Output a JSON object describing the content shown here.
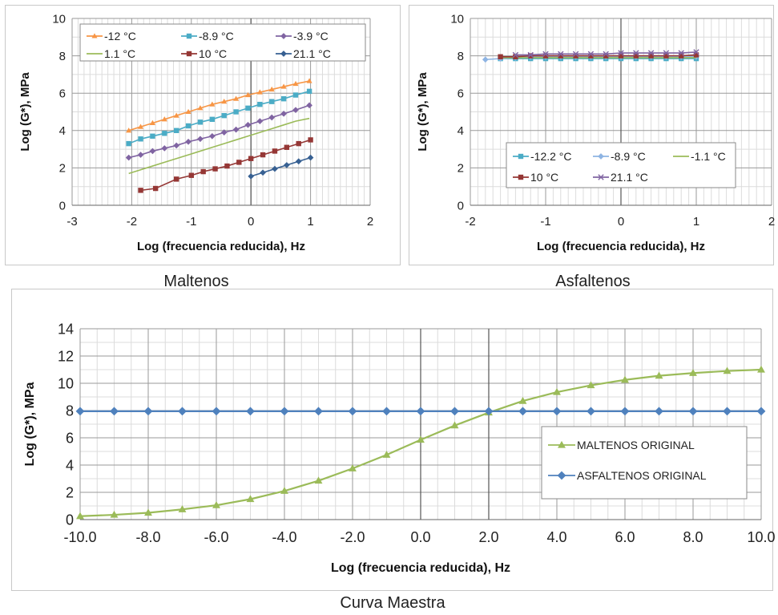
{
  "captions": {
    "maltenos": "Maltenos",
    "asfaltenos": "Asfaltenos",
    "maestra": "Curva Maestra"
  },
  "chart_data": [
    {
      "id": "maltenos",
      "type": "line",
      "xlabel": "Log (frecuencia reducida), Hz",
      "ylabel": "Log (G*), MPa",
      "xlim": [
        -3,
        2
      ],
      "ylim": [
        0,
        10
      ],
      "xticks": [
        "-3",
        "-2",
        "-1",
        "0",
        "1",
        "2"
      ],
      "yticks": [
        "0",
        "2",
        "4",
        "6",
        "8",
        "10"
      ],
      "grid": true,
      "legend": "top",
      "series": [
        {
          "name": "-12 °C",
          "color": "#f79646",
          "marker": "triangle",
          "x": [
            -2.05,
            -1.85,
            -1.65,
            -1.45,
            -1.25,
            -1.05,
            -0.85,
            -0.65,
            -0.45,
            -0.25,
            -0.05,
            0.15,
            0.35,
            0.55,
            0.75,
            0.98
          ],
          "y": [
            4.0,
            4.2,
            4.4,
            4.6,
            4.8,
            5.0,
            5.2,
            5.4,
            5.55,
            5.7,
            5.9,
            6.05,
            6.2,
            6.35,
            6.5,
            6.65
          ]
        },
        {
          "name": "-8.9 °C",
          "color": "#4bacc6",
          "marker": "square",
          "x": [
            -2.05,
            -1.85,
            -1.65,
            -1.45,
            -1.25,
            -1.05,
            -0.85,
            -0.65,
            -0.45,
            -0.25,
            -0.05,
            0.15,
            0.35,
            0.55,
            0.75,
            0.98
          ],
          "y": [
            3.3,
            3.55,
            3.7,
            3.85,
            4.0,
            4.25,
            4.45,
            4.6,
            4.8,
            5.0,
            5.2,
            5.4,
            5.55,
            5.7,
            5.9,
            6.1
          ]
        },
        {
          "name": "-3.9 °C",
          "color": "#8064a2",
          "marker": "diamond",
          "x": [
            -2.05,
            -1.85,
            -1.65,
            -1.45,
            -1.25,
            -1.05,
            -0.85,
            -0.65,
            -0.45,
            -0.25,
            -0.05,
            0.15,
            0.35,
            0.55,
            0.75,
            0.98
          ],
          "y": [
            2.55,
            2.7,
            2.9,
            3.05,
            3.2,
            3.4,
            3.55,
            3.7,
            3.9,
            4.05,
            4.3,
            4.5,
            4.7,
            4.9,
            5.1,
            5.35
          ]
        },
        {
          "name": "1.1 °C",
          "color": "#9bbb59",
          "marker": "line",
          "x": [
            -2.05,
            -1.85,
            -1.65,
            -1.45,
            -1.25,
            -1.05,
            -0.85,
            -0.65,
            -0.45,
            -0.25,
            -0.05,
            0.15,
            0.35,
            0.55,
            0.75,
            0.98
          ],
          "y": [
            1.7,
            1.9,
            2.1,
            2.3,
            2.5,
            2.7,
            2.9,
            3.1,
            3.3,
            3.5,
            3.7,
            3.9,
            4.1,
            4.3,
            4.5,
            4.65
          ]
        },
        {
          "name": "10 °C",
          "color": "#953735",
          "marker": "square",
          "x": [
            -1.85,
            -1.6,
            -1.25,
            -1.0,
            -0.8,
            -0.6,
            -0.4,
            -0.2,
            0.0,
            0.2,
            0.4,
            0.6,
            0.8,
            1.0
          ],
          "y": [
            0.8,
            0.9,
            1.4,
            1.6,
            1.8,
            1.95,
            2.1,
            2.3,
            2.5,
            2.7,
            2.9,
            3.1,
            3.3,
            3.5
          ]
        },
        {
          "name": "21.1 °C",
          "color": "#376092",
          "marker": "diamond",
          "x": [
            0.0,
            0.2,
            0.4,
            0.6,
            0.8,
            1.0
          ],
          "y": [
            1.55,
            1.75,
            1.95,
            2.15,
            2.35,
            2.55
          ]
        }
      ]
    },
    {
      "id": "asfaltenos",
      "type": "line",
      "xlabel": "Log (frecuencia reducida), Hz",
      "ylabel": "Log (G*), MPa",
      "xlim": [
        -2,
        2
      ],
      "ylim": [
        0,
        10
      ],
      "xticks": [
        "-2",
        "-1",
        "0",
        "1",
        "2"
      ],
      "yticks": [
        "0",
        "2",
        "4",
        "6",
        "8",
        "10"
      ],
      "grid": true,
      "legend": "bottom-center",
      "series": [
        {
          "name": "-12.2 °C",
          "color": "#4bacc6",
          "marker": "square",
          "x": [
            -1.6,
            -1.4,
            -1.2,
            -1.0,
            -0.8,
            -0.6,
            -0.4,
            -0.2,
            0.0,
            0.2,
            0.4,
            0.6,
            0.8,
            1.0
          ],
          "y": [
            7.85,
            7.85,
            7.85,
            7.85,
            7.85,
            7.85,
            7.85,
            7.85,
            7.85,
            7.85,
            7.85,
            7.85,
            7.85,
            7.85
          ]
        },
        {
          "name": "-8.9 °C",
          "color": "#8eb4e3",
          "marker": "diamond",
          "x": [
            -1.8,
            -1.6,
            -1.4,
            -1.2,
            -1.0,
            -0.8,
            -0.6,
            -0.4,
            -0.2,
            0.0,
            0.2,
            0.4,
            0.6,
            0.8,
            1.0
          ],
          "y": [
            7.8,
            7.85,
            7.9,
            7.95,
            7.95,
            7.95,
            7.95,
            7.95,
            7.95,
            7.95,
            7.95,
            7.95,
            7.95,
            7.95,
            7.95
          ]
        },
        {
          "name": "-1.1 °C",
          "color": "#9bbb59",
          "marker": "line",
          "x": [
            -1.6,
            -1.4,
            -1.2,
            -1.0,
            -0.8,
            -0.6,
            -0.4,
            -0.2,
            0.0,
            0.2,
            0.4,
            0.6,
            0.8,
            1.0
          ],
          "y": [
            7.9,
            7.9,
            7.9,
            7.9,
            7.9,
            7.9,
            7.9,
            7.9,
            7.9,
            7.9,
            7.9,
            7.9,
            7.9,
            7.9
          ]
        },
        {
          "name": "10 °C",
          "color": "#953735",
          "marker": "square",
          "x": [
            -1.6,
            -1.4,
            -1.2,
            -1.0,
            -0.8,
            -0.6,
            -0.4,
            -0.2,
            0.0,
            0.2,
            0.4,
            0.6,
            0.8,
            1.0
          ],
          "y": [
            7.95,
            7.95,
            8.0,
            8.0,
            8.0,
            8.0,
            8.0,
            8.0,
            8.0,
            8.0,
            8.0,
            8.0,
            8.0,
            8.05
          ]
        },
        {
          "name": "21.1 °C",
          "color": "#8064a2",
          "marker": "x",
          "x": [
            -1.4,
            -1.2,
            -1.0,
            -0.8,
            -0.6,
            -0.4,
            -0.2,
            0.0,
            0.2,
            0.4,
            0.6,
            0.8,
            1.0
          ],
          "y": [
            8.05,
            8.05,
            8.1,
            8.1,
            8.1,
            8.1,
            8.1,
            8.15,
            8.15,
            8.15,
            8.15,
            8.15,
            8.2
          ]
        }
      ]
    },
    {
      "id": "maestra",
      "type": "line",
      "xlabel": "Log (frecuencia reducida), Hz",
      "ylabel": "Log (G*), MPa",
      "xlim": [
        -10,
        10
      ],
      "ylim": [
        0,
        14
      ],
      "xticks": [
        "-10.0",
        "-8.0",
        "-6.0",
        "-4.0",
        "-2.0",
        "0.0",
        "2.0",
        "4.0",
        "6.0",
        "8.0",
        "10.0"
      ],
      "yticks": [
        "0",
        "2",
        "4",
        "6",
        "8",
        "10",
        "12",
        "14"
      ],
      "grid": true,
      "legend": "right",
      "series": [
        {
          "name": "MALTENOS ORIGINAL",
          "color": "#9bbb59",
          "marker": "triangle",
          "x": [
            -10,
            -9,
            -8,
            -7,
            -6,
            -5,
            -4,
            -3,
            -2,
            -1,
            0,
            1,
            2,
            3,
            4,
            5,
            6,
            7,
            8,
            9,
            10
          ],
          "y": [
            0.25,
            0.35,
            0.5,
            0.75,
            1.05,
            1.5,
            2.1,
            2.85,
            3.75,
            4.75,
            5.85,
            6.9,
            7.85,
            8.7,
            9.35,
            9.85,
            10.25,
            10.55,
            10.75,
            10.9,
            11.0
          ]
        },
        {
          "name": "ASFALTENOS ORIGINAL",
          "color": "#4f81bd",
          "marker": "diamond",
          "x": [
            -10,
            -9,
            -8,
            -7,
            -6,
            -5,
            -4,
            -3,
            -2,
            -1,
            0,
            1,
            2,
            3,
            4,
            5,
            6,
            7,
            8,
            9,
            10
          ],
          "y": [
            7.95,
            7.95,
            7.95,
            7.95,
            7.95,
            7.95,
            7.95,
            7.95,
            7.95,
            7.95,
            7.95,
            7.95,
            7.95,
            7.95,
            7.95,
            7.95,
            7.95,
            7.95,
            7.95,
            7.95,
            7.95
          ]
        }
      ]
    }
  ]
}
